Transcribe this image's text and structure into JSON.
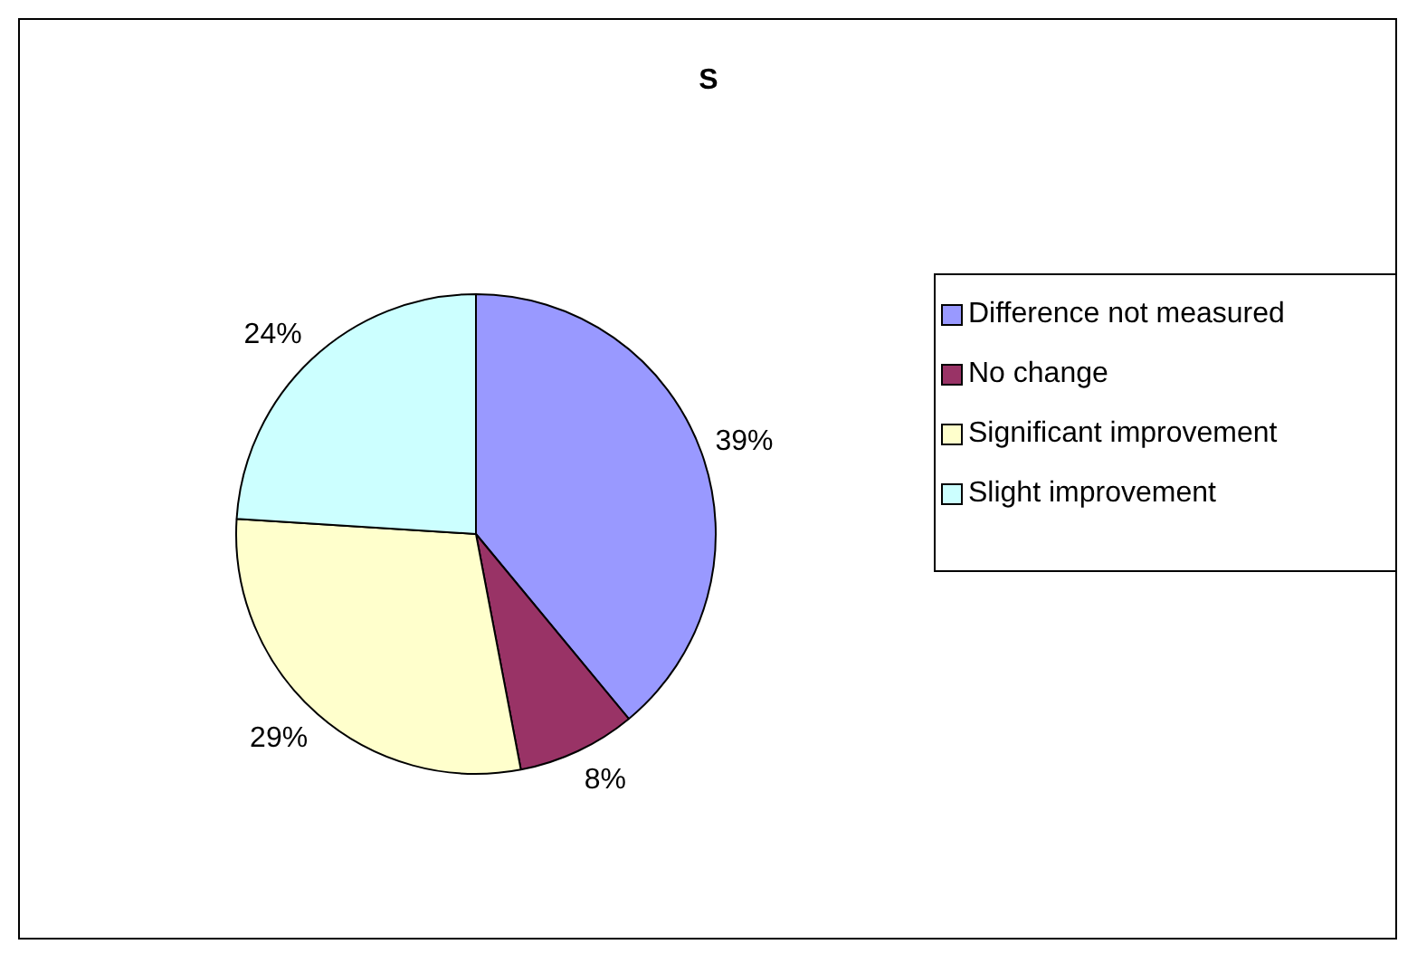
{
  "chart_data": {
    "type": "pie",
    "title": "S",
    "categories": [
      "Difference not measured",
      "No change",
      "Significant improvement",
      "Slight improvement"
    ],
    "values": [
      39,
      8,
      29,
      24
    ],
    "colors": [
      "#9999ff",
      "#993366",
      "#ffffcc",
      "#ccffff"
    ],
    "value_labels": [
      "39%",
      "8%",
      "29%",
      "24%"
    ],
    "legend": "right"
  }
}
